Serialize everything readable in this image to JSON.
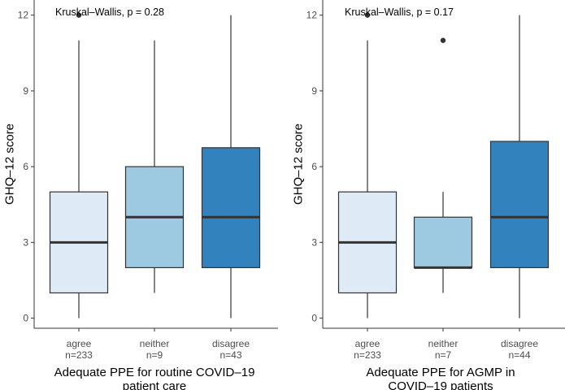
{
  "chart_data": [
    {
      "type": "boxplot",
      "annotation": "Kruskal–Wallis, p = 0.28",
      "ylabel": "GHQ–12 score",
      "xlabel_lines": [
        "Adequate PPE for routine COVID–19",
        "patient care"
      ],
      "ylim": [
        -0.4,
        12.6
      ],
      "yticks": [
        0,
        3,
        6,
        9,
        12
      ],
      "groups": [
        {
          "label": "agree",
          "n_label": "n=233",
          "whisker_low": 0,
          "q1": 1,
          "median": 3,
          "q3": 5,
          "whisker_high": 11,
          "outliers": [
            12
          ],
          "color": "#deebf7"
        },
        {
          "label": "neither",
          "n_label": "n=9",
          "whisker_low": 1,
          "q1": 2,
          "median": 4,
          "q3": 6,
          "whisker_high": 11,
          "outliers": [],
          "color": "#9ecae1"
        },
        {
          "label": "disagree",
          "n_label": "n=43",
          "whisker_low": 0,
          "q1": 2,
          "median": 4,
          "q3": 6.75,
          "whisker_high": 12,
          "outliers": [],
          "color": "#3182bd"
        }
      ]
    },
    {
      "type": "boxplot",
      "annotation": "Kruskal–Wallis, p = 0.17",
      "ylabel": "GHQ–12 score",
      "xlabel_lines": [
        "Adequate PPE for AGMP in",
        "COVID–19 patients"
      ],
      "ylim": [
        -0.4,
        12.6
      ],
      "yticks": [
        0,
        3,
        6,
        9,
        12
      ],
      "groups": [
        {
          "label": "agree",
          "n_label": "n=233",
          "whisker_low": 0,
          "q1": 1,
          "median": 3,
          "q3": 5,
          "whisker_high": 11,
          "outliers": [
            12
          ],
          "color": "#deebf7"
        },
        {
          "label": "neither",
          "n_label": "n=7",
          "whisker_low": 1,
          "q1": 2,
          "median": 2,
          "q3": 4,
          "whisker_high": 5,
          "outliers": [
            11
          ],
          "color": "#9ecae1"
        },
        {
          "label": "disagree",
          "n_label": "n=44",
          "whisker_low": 0,
          "q1": 2,
          "median": 4,
          "q3": 7,
          "whisker_high": 12,
          "outliers": [],
          "color": "#3182bd"
        }
      ]
    }
  ]
}
